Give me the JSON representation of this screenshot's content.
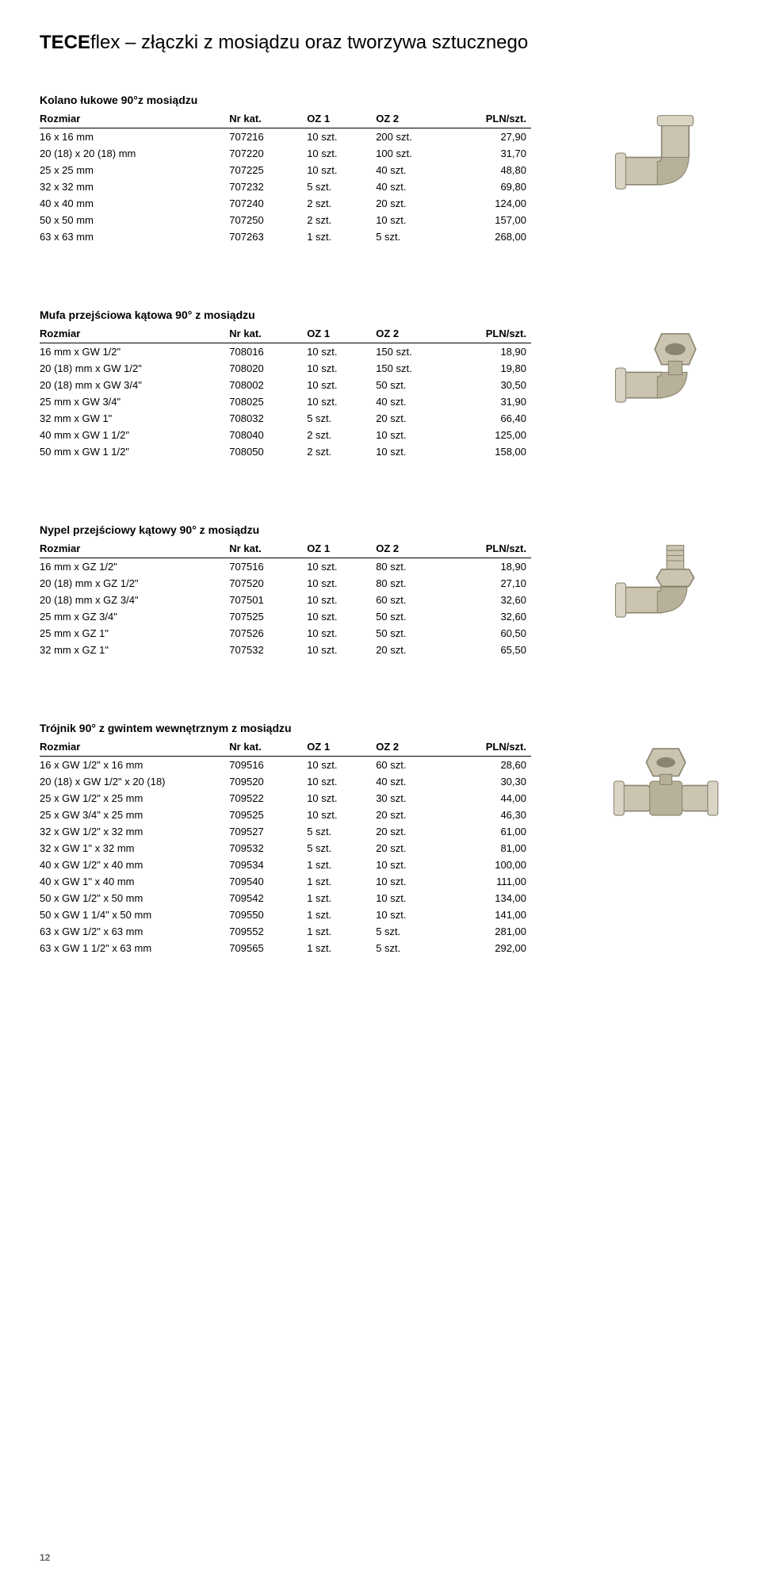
{
  "page_title_bold": "TECE",
  "page_title_light": "flex – złączki z mosiądzu oraz tworzywa sztucznego",
  "page_number": "12",
  "columns": {
    "size": "Rozmiar",
    "kat": "Nr kat.",
    "oz1": "OZ 1",
    "oz2": "OZ 2",
    "pln": "PLN/szt."
  },
  "sections": [
    {
      "title": "Kolano łukowe 90°z mosiądzu",
      "rows": [
        [
          "16 x 16 mm",
          "707216",
          "10 szt.",
          "200 szt.",
          "27,90"
        ],
        [
          "20 (18) x 20 (18) mm",
          "707220",
          "10 szt.",
          "100 szt.",
          "31,70"
        ],
        [
          "25 x 25 mm",
          "707225",
          "10 szt.",
          "40 szt.",
          "48,80"
        ],
        [
          "32 x 32 mm",
          "707232",
          "5 szt.",
          "40 szt.",
          "69,80"
        ],
        [
          "40 x 40 mm",
          "707240",
          "2 szt.",
          "20 szt.",
          "124,00"
        ],
        [
          "50 x 50 mm",
          "707250",
          "2 szt.",
          "10 szt.",
          "157,00"
        ],
        [
          "63 x 63 mm",
          "707263",
          "1 szt.",
          "5 szt.",
          "268,00"
        ]
      ],
      "icon": "elbow-fitting"
    },
    {
      "title": "Mufa przejściowa kątowa 90° z mosiądzu",
      "rows": [
        [
          "16 mm x GW 1/2\"",
          "708016",
          "10 szt.",
          "150 szt.",
          "18,90"
        ],
        [
          "20 (18) mm x GW 1/2\"",
          "708020",
          "10 szt.",
          "150 szt.",
          "19,80"
        ],
        [
          "20 (18) mm x GW 3/4\"",
          "708002",
          "10 szt.",
          "50 szt.",
          "30,50"
        ],
        [
          "25 mm x GW 3/4\"",
          "708025",
          "10 szt.",
          "40 szt.",
          "31,90"
        ],
        [
          "32 mm x GW 1\"",
          "708032",
          "5 szt.",
          "20 szt.",
          "66,40"
        ],
        [
          "40 mm x GW 1 1/2\"",
          "708040",
          "2 szt.",
          "10 szt.",
          "125,00"
        ],
        [
          "50 mm x GW 1 1/2\"",
          "708050",
          "2 szt.",
          "10 szt.",
          "158,00"
        ]
      ],
      "icon": "elbow-female-thread"
    },
    {
      "title": "Nypel przejściowy kątowy 90° z mosiądzu",
      "rows": [
        [
          "16 mm x GZ 1/2\"",
          "707516",
          "10 szt.",
          "80 szt.",
          "18,90"
        ],
        [
          "20 (18) mm x GZ 1/2\"",
          "707520",
          "10 szt.",
          "80 szt.",
          "27,10"
        ],
        [
          "20 (18) mm x GZ 3/4\"",
          "707501",
          "10 szt.",
          "60 szt.",
          "32,60"
        ],
        [
          "25 mm x GZ 3/4\"",
          "707525",
          "10 szt.",
          "50 szt.",
          "32,60"
        ],
        [
          "25 mm x GZ 1\"",
          "707526",
          "10 szt.",
          "50 szt.",
          "60,50"
        ],
        [
          "32 mm x GZ 1\"",
          "707532",
          "10 szt.",
          "20 szt.",
          "65,50"
        ]
      ],
      "icon": "elbow-male-thread"
    },
    {
      "title": "Trójnik 90° z gwintem wewnętrznym z mosiądzu",
      "rows": [
        [
          "16 x GW 1/2\" x 16 mm",
          "709516",
          "10 szt.",
          "60 szt.",
          "28,60"
        ],
        [
          "20 (18) x GW 1/2\" x 20 (18)",
          "709520",
          "10 szt.",
          "40 szt.",
          "30,30"
        ],
        [
          "25 x GW 1/2\" x 25 mm",
          "709522",
          "10 szt.",
          "30 szt.",
          "44,00"
        ],
        [
          "25 x GW 3/4\" x 25 mm",
          "709525",
          "10 szt.",
          "20 szt.",
          "46,30"
        ],
        [
          "32 x GW 1/2\" x 32 mm",
          "709527",
          "5 szt.",
          "20 szt.",
          "61,00"
        ],
        [
          "32 x GW 1\" x 32 mm",
          "709532",
          "5 szt.",
          "20 szt.",
          "81,00"
        ],
        [
          "40 x GW 1/2\" x 40 mm",
          "709534",
          "1 szt.",
          "10 szt.",
          "100,00"
        ],
        [
          "40 x GW 1\" x 40 mm",
          "709540",
          "1 szt.",
          "10 szt.",
          "111,00"
        ],
        [
          "50 x GW 1/2\" x 50 mm",
          "709542",
          "1 szt.",
          "10 szt.",
          "134,00"
        ],
        [
          "50 x GW 1 1/4\" x 50 mm",
          "709550",
          "1 szt.",
          "10 szt.",
          "141,00"
        ],
        [
          "63 x GW 1/2\" x 63 mm",
          "709552",
          "1 szt.",
          "5 szt.",
          "281,00"
        ],
        [
          "63 x GW 1 1/2\" x 63 mm",
          "709565",
          "1 szt.",
          "5 szt.",
          "292,00"
        ]
      ],
      "icon": "tee-fitting"
    }
  ],
  "image_colors": {
    "brass_light": "#d9d4c4",
    "brass_mid": "#b8b19a",
    "brass_dark": "#8a8470",
    "shadow": "#6b6555"
  }
}
